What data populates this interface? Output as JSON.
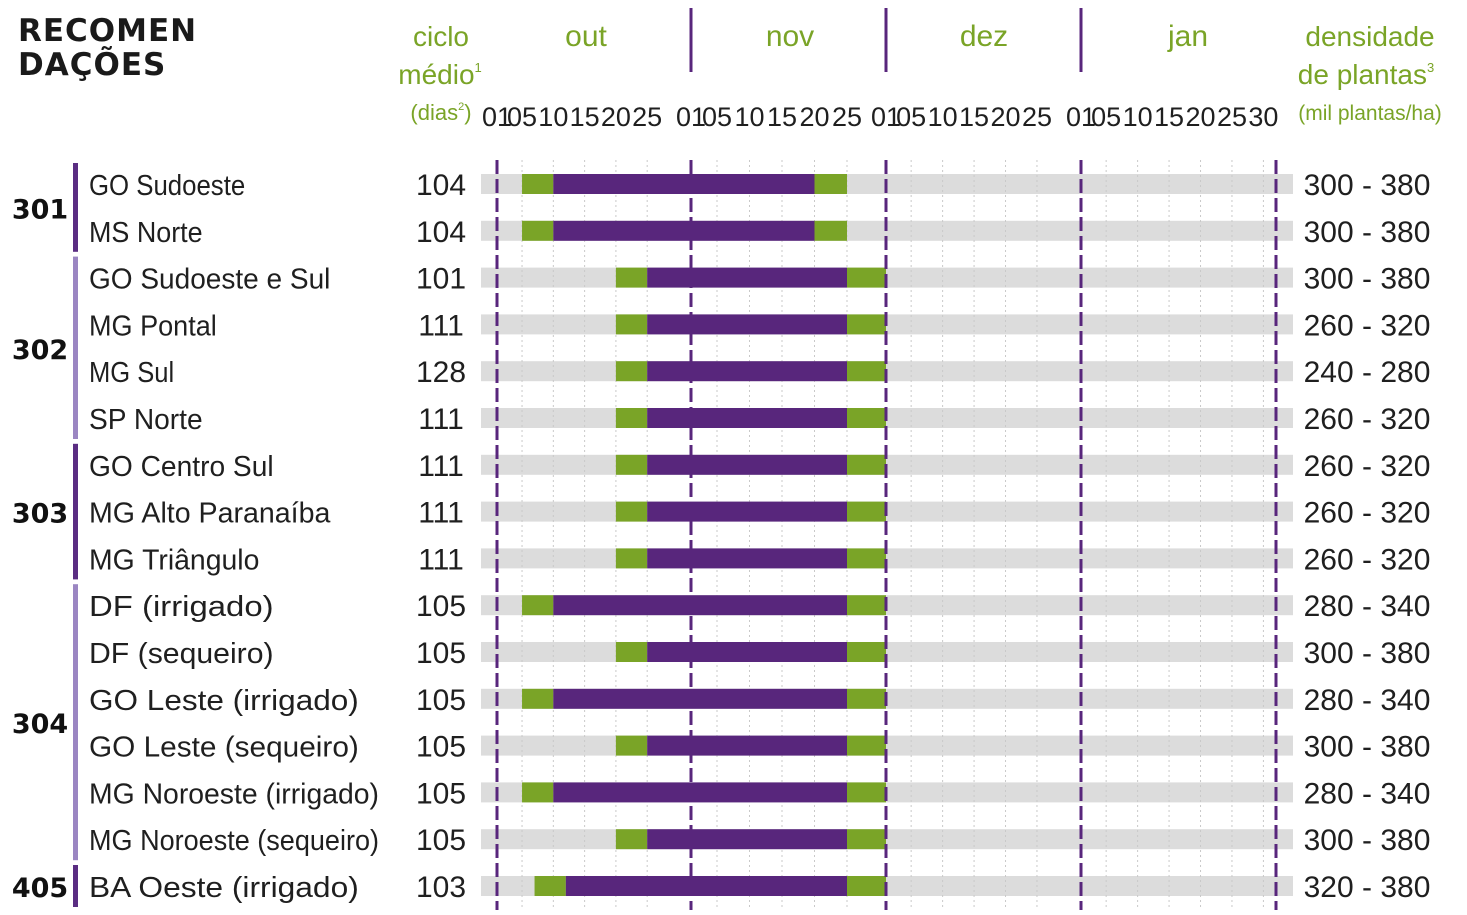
{
  "title": {
    "line1": "RECOMEN",
    "line2": "DAÇÕES"
  },
  "header": {
    "cycle": {
      "line1": "ciclo",
      "line2": "médio",
      "line2_sup": "1",
      "line3": "(dias",
      "line3_sup": "2",
      "line3_end": ")"
    },
    "density": {
      "line1": "densidade",
      "line2": "de plantas",
      "line2_sup": "3",
      "line3": "(mil plantas/ha)"
    }
  },
  "chart_data": {
    "type": "gantt",
    "months": [
      "out",
      "nov",
      "dez",
      "jan"
    ],
    "day_ticks": [
      "01",
      "05",
      "10",
      "15",
      "20",
      "25",
      "01",
      "05",
      "10",
      "15",
      "20",
      "25",
      "01",
      "05",
      "10",
      "15",
      "20",
      "25",
      "01",
      "05",
      "10",
      "15",
      "20",
      "25",
      "30"
    ],
    "groups": [
      {
        "label": "301",
        "color": "#5a2d82",
        "rows": [
          0,
          1
        ]
      },
      {
        "label": "302",
        "color": "#9b86c2",
        "rows": [
          2,
          3,
          4,
          5
        ]
      },
      {
        "label": "303",
        "color": "#5a2d82",
        "rows": [
          6,
          7,
          8
        ]
      },
      {
        "label": "304",
        "color": "#9b86c2",
        "rows": [
          9,
          10,
          11,
          12,
          13,
          14
        ]
      },
      {
        "label": "405",
        "color": "#5a2d82",
        "rows": [
          15
        ]
      }
    ],
    "rows": [
      {
        "region": "GO Sudoeste",
        "cycle": "104",
        "density": "300 - 380",
        "green_start": "out 05",
        "purple_start": "out 10",
        "purple_end": "nov 20",
        "green_end": "nov 25"
      },
      {
        "region": "MS Norte",
        "cycle": "104",
        "density": "300 - 380",
        "green_start": "out 05",
        "purple_start": "out 10",
        "purple_end": "nov 20",
        "green_end": "nov 25"
      },
      {
        "region": "GO Sudoeste e Sul",
        "cycle": "101",
        "density": "300 - 380",
        "green_start": "out 20",
        "purple_start": "out 25",
        "purple_end": "nov 25",
        "green_end": "dez 01"
      },
      {
        "region": "MG Pontal",
        "cycle": "111",
        "density": "260 - 320",
        "green_start": "out 20",
        "purple_start": "out 25",
        "purple_end": "nov 25",
        "green_end": "dez 01"
      },
      {
        "region": "MG Sul",
        "cycle": "128",
        "density": "240 - 280",
        "green_start": "out 20",
        "purple_start": "out 25",
        "purple_end": "nov 25",
        "green_end": "dez 01"
      },
      {
        "region": "SP Norte",
        "cycle": "111",
        "density": "260 - 320",
        "green_start": "out 20",
        "purple_start": "out 25",
        "purple_end": "nov 25",
        "green_end": "dez 01"
      },
      {
        "region": "GO Centro Sul",
        "cycle": "111",
        "density": "260 - 320",
        "green_start": "out 20",
        "purple_start": "out 25",
        "purple_end": "nov 25",
        "green_end": "dez 01"
      },
      {
        "region": "MG Alto Paranaíba",
        "cycle": "111",
        "density": "260 - 320",
        "green_start": "out 20",
        "purple_start": "out 25",
        "purple_end": "nov 25",
        "green_end": "dez 01"
      },
      {
        "region": "MG Triângulo",
        "cycle": "111",
        "density": "260 - 320",
        "green_start": "out 20",
        "purple_start": "out 25",
        "purple_end": "nov 25",
        "green_end": "dez 01"
      },
      {
        "region": "DF (irrigado)",
        "cycle": "105",
        "density": "280 - 340",
        "green_start": "out 05",
        "purple_start": "out 10",
        "purple_end": "nov 25",
        "green_end": "dez 01"
      },
      {
        "region": "DF (sequeiro)",
        "cycle": "105",
        "density": "300 - 380",
        "green_start": "out 20",
        "purple_start": "out 25",
        "purple_end": "nov 25",
        "green_end": "dez 01"
      },
      {
        "region": "GO Leste (irrigado)",
        "cycle": "105",
        "density": "280 - 340",
        "green_start": "out 05",
        "purple_start": "out 10",
        "purple_end": "nov 25",
        "green_end": "dez 01"
      },
      {
        "region": "GO Leste (sequeiro)",
        "cycle": "105",
        "density": "300 - 380",
        "green_start": "out 20",
        "purple_start": "out 25",
        "purple_end": "nov 25",
        "green_end": "dez 01"
      },
      {
        "region": "MG Noroeste (irrigado)",
        "cycle": "105",
        "density": "280 - 340",
        "green_start": "out 05",
        "purple_start": "out 10",
        "purple_end": "nov 25",
        "green_end": "dez 01"
      },
      {
        "region": "MG Noroeste (sequeiro)",
        "cycle": "105",
        "density": "300 - 380",
        "green_start": "out 20",
        "purple_start": "out 25",
        "purple_end": "nov 25",
        "green_end": "dez 01"
      },
      {
        "region": "BA Oeste (irrigado)",
        "cycle": "103",
        "density": "320 - 380",
        "green_start": "out 07",
        "purple_start": "out 12",
        "purple_end": "nov 25",
        "green_end": "dez 01"
      }
    ],
    "colors": {
      "recommended": "#58267c",
      "tolerated": "#7aa427",
      "track": "#dcdcdc",
      "header_text": "#7aa427",
      "month_divider": "#58267c",
      "text": "#1f1f1f"
    }
  }
}
